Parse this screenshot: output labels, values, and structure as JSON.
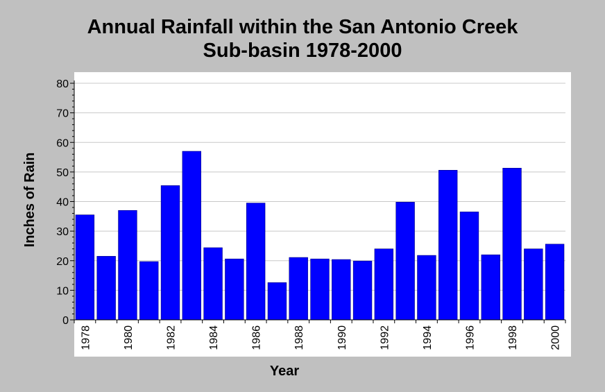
{
  "chart_data": {
    "type": "bar",
    "title_line1": "Annual Rainfall within the San Antonio Creek",
    "title_line2": "Sub-basin 1978-2000",
    "xlabel": "Year",
    "ylabel": "Inches of Rain",
    "ylim": [
      0,
      80
    ],
    "yticks": [
      "0",
      "10",
      "20",
      "30",
      "40",
      "50",
      "60",
      "70",
      "80"
    ],
    "grid": true,
    "bar_color": "#0000ff",
    "categories": [
      "1978",
      "1979",
      "1980",
      "1981",
      "1982",
      "1983",
      "1984",
      "1985",
      "1986",
      "1987",
      "1988",
      "1989",
      "1990",
      "1991",
      "1992",
      "1993",
      "1994",
      "1995",
      "1996",
      "1997",
      "1998",
      "1999",
      "2000"
    ],
    "tick_labels": [
      "1978",
      "1980",
      "1982",
      "1984",
      "1986",
      "1988",
      "1990",
      "1992",
      "1994",
      "1996",
      "1998",
      "2000"
    ],
    "values": [
      35.5,
      21.5,
      37.0,
      19.7,
      45.4,
      57.0,
      24.4,
      20.6,
      39.5,
      12.6,
      21.1,
      20.6,
      20.4,
      19.9,
      24.0,
      39.8,
      21.8,
      50.6,
      36.5,
      22.0,
      51.3,
      24.0,
      25.6
    ]
  }
}
